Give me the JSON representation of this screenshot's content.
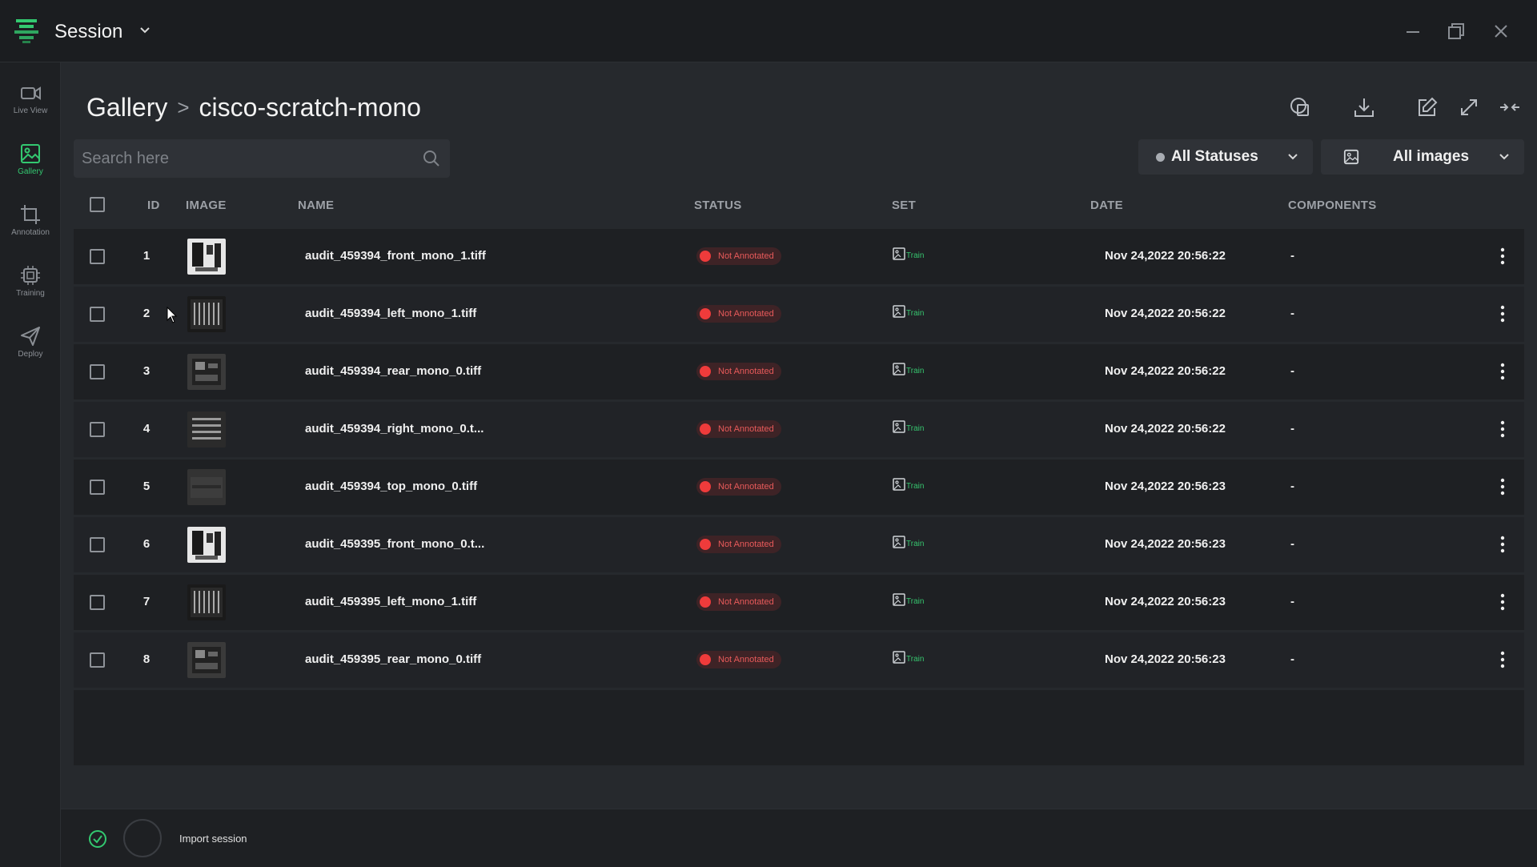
{
  "app": {
    "title": "Session"
  },
  "sidebar": {
    "items": [
      {
        "label": "Live View",
        "icon": "video-camera-icon",
        "active": false
      },
      {
        "label": "Gallery",
        "icon": "image-icon",
        "active": true
      },
      {
        "label": "Annotation",
        "icon": "crop-icon",
        "active": false
      },
      {
        "label": "Training",
        "icon": "cpu-chip-icon",
        "active": false
      },
      {
        "label": "Deploy",
        "icon": "send-icon",
        "active": false
      }
    ]
  },
  "breadcrumb": {
    "root": "Gallery",
    "separator": ">",
    "current": "cisco-scratch-mono"
  },
  "search": {
    "placeholder": "Search here"
  },
  "filters": {
    "status": {
      "label": "All Statuses"
    },
    "images": {
      "label": "All images"
    }
  },
  "table": {
    "headers": {
      "id": "ID",
      "image": "IMAGE",
      "name": "NAME",
      "status": "STATUS",
      "set": "SET",
      "date": "DATE",
      "components": "COMPONENTS"
    },
    "rows": [
      {
        "id": "1",
        "name": "audit_459394_front_mono_1.tiff",
        "status": "Not Annotated",
        "set": "Train",
        "date": "Nov 24,2022 20:56:22",
        "components": "-",
        "thumb": "front"
      },
      {
        "id": "2",
        "name": "audit_459394_left_mono_1.tiff",
        "status": "Not Annotated",
        "set": "Train",
        "date": "Nov 24,2022 20:56:22",
        "components": "-",
        "thumb": "left"
      },
      {
        "id": "3",
        "name": "audit_459394_rear_mono_0.tiff",
        "status": "Not Annotated",
        "set": "Train",
        "date": "Nov 24,2022 20:56:22",
        "components": "-",
        "thumb": "rear"
      },
      {
        "id": "4",
        "name": "audit_459394_right_mono_0.t...",
        "status": "Not Annotated",
        "set": "Train",
        "date": "Nov 24,2022 20:56:22",
        "components": "-",
        "thumb": "right"
      },
      {
        "id": "5",
        "name": "audit_459394_top_mono_0.tiff",
        "status": "Not Annotated",
        "set": "Train",
        "date": "Nov 24,2022 20:56:23",
        "components": "-",
        "thumb": "top"
      },
      {
        "id": "6",
        "name": "audit_459395_front_mono_0.t...",
        "status": "Not Annotated",
        "set": "Train",
        "date": "Nov 24,2022 20:56:23",
        "components": "-",
        "thumb": "front"
      },
      {
        "id": "7",
        "name": "audit_459395_left_mono_1.tiff",
        "status": "Not Annotated",
        "set": "Train",
        "date": "Nov 24,2022 20:56:23",
        "components": "-",
        "thumb": "left"
      },
      {
        "id": "8",
        "name": "audit_459395_rear_mono_0.tiff",
        "status": "Not Annotated",
        "set": "Train",
        "date": "Nov 24,2022 20:56:23",
        "components": "-",
        "thumb": "rear"
      }
    ]
  },
  "footer": {
    "label": "Import session"
  },
  "colors": {
    "accent": "#33c870",
    "status_red": "#ef3b3b",
    "background": "#26292d",
    "panel": "#1e2023"
  }
}
